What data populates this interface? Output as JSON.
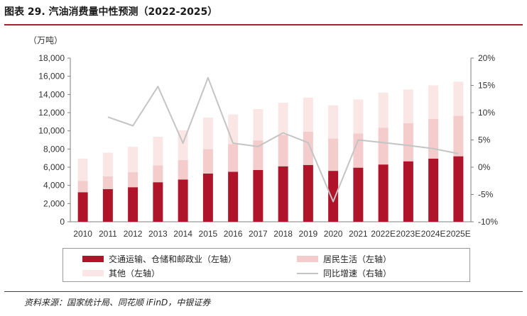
{
  "title": "图表 29. 汽油消费量中性预测（2022-2025）",
  "unit_label": "（万吨）",
  "source": "资料来源：国家统计局、同花顺 iFinD，中银证券",
  "colors": {
    "transport": "#b0142b",
    "residential": "#f4cccc",
    "other": "#fbe6e6",
    "growth": "#c4c4c4",
    "accent": "#a8232e"
  },
  "legend": [
    {
      "label": "交通运输、仓储和邮政业（左轴）",
      "key": "transport"
    },
    {
      "label": "居民生活（左轴）",
      "key": "residential"
    },
    {
      "label": "其他（左轴）",
      "key": "other"
    },
    {
      "label": "同比增速（右轴）",
      "key": "growth"
    }
  ],
  "chart_data": {
    "type": "bar",
    "stacked": true,
    "categories": [
      "2010",
      "2011",
      "2012",
      "2013",
      "2014",
      "2015",
      "2016",
      "2017",
      "2018",
      "2019",
      "2020",
      "2021",
      "2022E",
      "2023E",
      "2024E",
      "2025E"
    ],
    "series": [
      {
        "name": "交通运输、仓储和邮政业（左轴）",
        "axis": "left",
        "type": "bar",
        "values": [
          3250,
          3600,
          3800,
          4350,
          4650,
          5300,
          5500,
          5700,
          6100,
          6250,
          5600,
          5950,
          6300,
          6650,
          6950,
          7200
        ]
      },
      {
        "name": "居民生活（左轴）",
        "axis": "left",
        "type": "bar",
        "values": [
          1250,
          1400,
          1650,
          1850,
          2150,
          2700,
          3050,
          3250,
          3450,
          3650,
          3550,
          3750,
          4050,
          4200,
          4350,
          4450
        ]
      },
      {
        "name": "其他（左轴）",
        "axis": "left",
        "type": "bar",
        "values": [
          2450,
          2600,
          2800,
          3150,
          3250,
          3450,
          3250,
          3450,
          3550,
          3750,
          3650,
          3750,
          3850,
          3700,
          3700,
          3750
        ]
      },
      {
        "name": "同比增速（右轴）",
        "axis": "right",
        "type": "line",
        "values": [
          null,
          9.2,
          7.6,
          14.8,
          4.4,
          16.4,
          4.4,
          3.8,
          6.3,
          4.5,
          -6.3,
          5.0,
          4.5,
          4.0,
          3.4,
          2.5
        ]
      }
    ],
    "y_left": {
      "min": 0,
      "max": 18000,
      "step": 2000,
      "ticks": [
        "0",
        "2,000",
        "4,000",
        "6,000",
        "8,000",
        "10,000",
        "12,000",
        "14,000",
        "16,000",
        "18,000"
      ]
    },
    "y_right": {
      "min": -10,
      "max": 20,
      "step": 5,
      "ticks": [
        "-10%",
        "-5%",
        "0%",
        "5%",
        "10%",
        "15%",
        "20%"
      ]
    },
    "legend_position": "bottom",
    "grid": false
  }
}
